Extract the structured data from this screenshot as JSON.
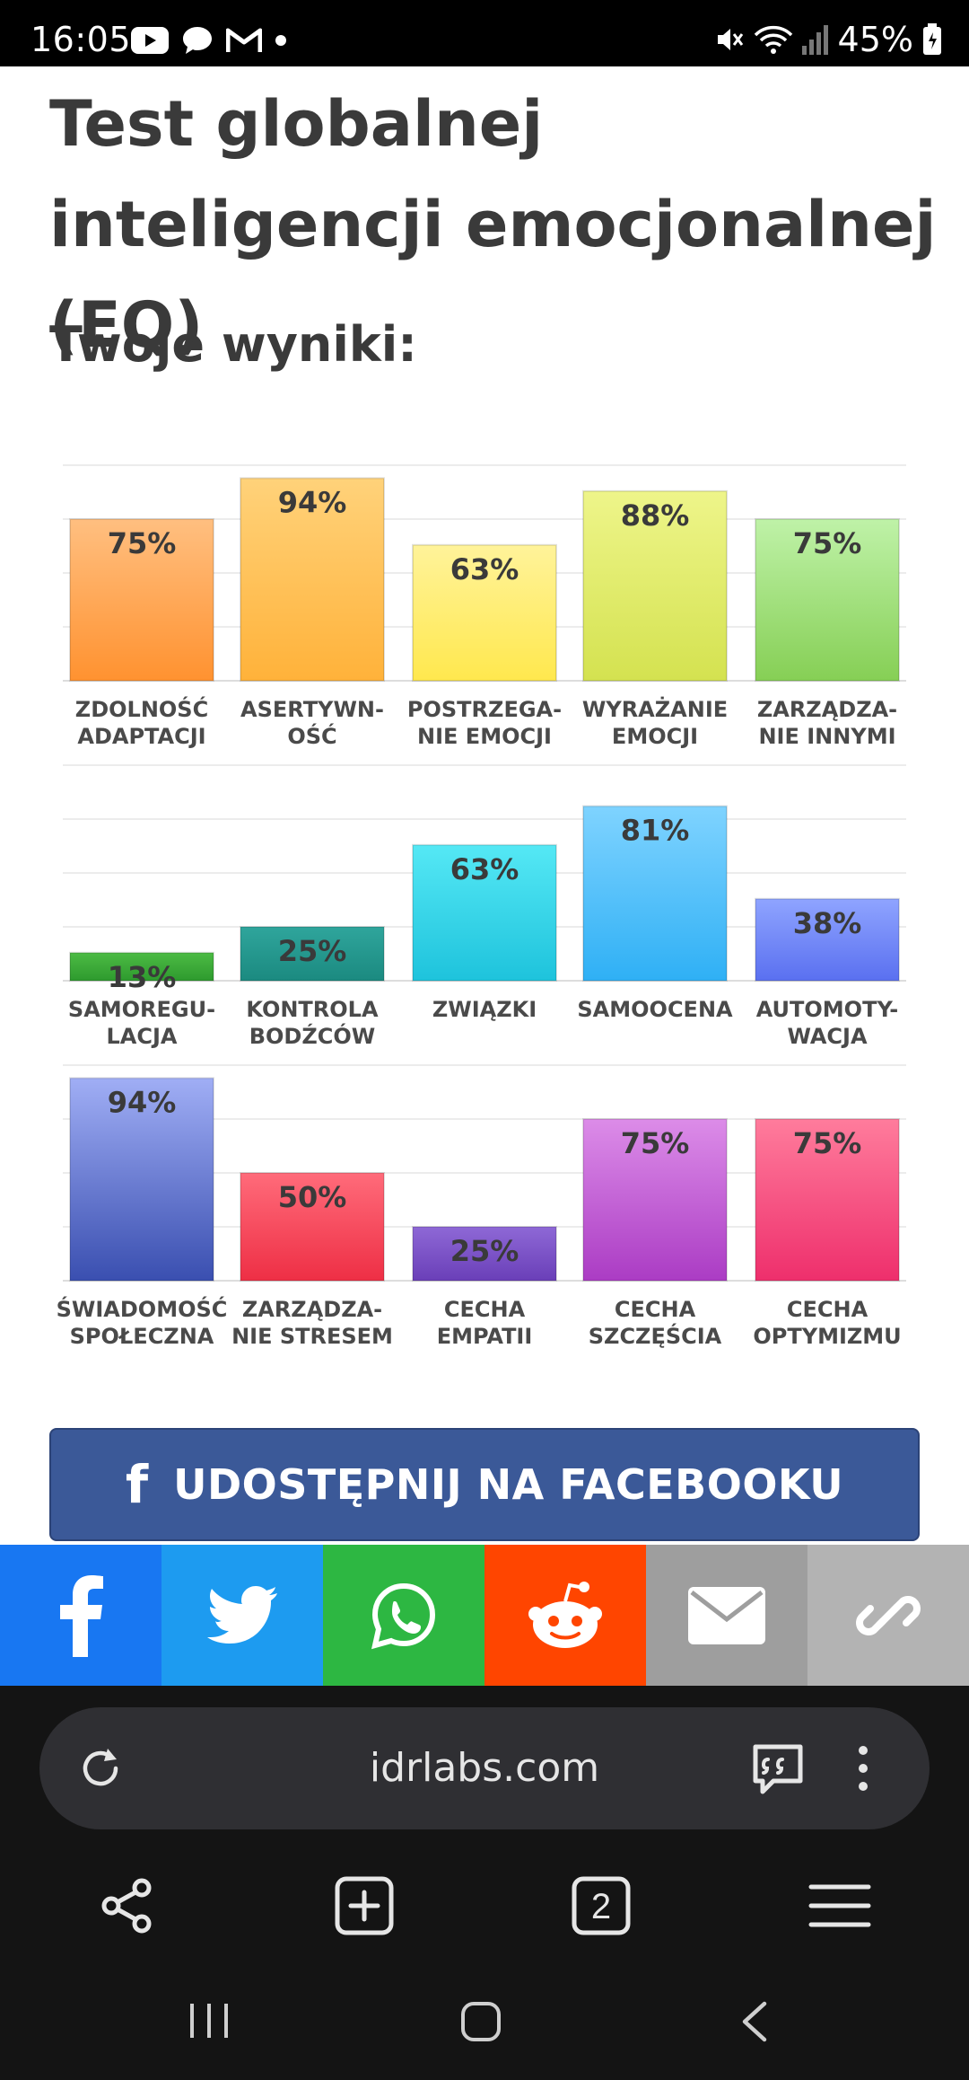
{
  "status_bar": {
    "time": "16:05",
    "battery": "45%",
    "left_icons": [
      "youtube-icon",
      "chat-icon",
      "gmail-icon",
      "notification-dot-icon"
    ],
    "right_icons": [
      "mute-icon",
      "wifi-icon",
      "signal-icon",
      "battery-icon"
    ]
  },
  "page": {
    "title": "Test globalnej inteligencji emocjonalnej (EQ)",
    "subtitle": "Twoje wyniki:"
  },
  "chart_data": {
    "type": "bar",
    "ylim": [
      0,
      100
    ],
    "grid": true,
    "rows": [
      {
        "categories": [
          [
            "ZDOLNOŚĆ",
            "ADAPTACJI"
          ],
          [
            "ASERTYWN-",
            "OŚĆ"
          ],
          [
            "POSTRZEGA-",
            "NIE EMOCJI"
          ],
          [
            "WYRAŻANIE",
            "EMOCJI"
          ],
          [
            "ZARZĄDZA-",
            "NIE INNYMI"
          ]
        ],
        "values": [
          75,
          94,
          63,
          88,
          75
        ],
        "labels": [
          "75%",
          "94%",
          "63%",
          "88%",
          "75%"
        ],
        "colors": [
          [
            "#ffbf80",
            "#ff9230"
          ],
          [
            "#ffd27a",
            "#ffb23a"
          ],
          [
            "#fff39a",
            "#ffe84e"
          ],
          [
            "#eef58a",
            "#d4e250"
          ],
          [
            "#bff2a8",
            "#86cf55"
          ]
        ]
      },
      {
        "categories": [
          [
            "SAMOREGU-",
            "LACJA"
          ],
          [
            "KONTROLA",
            "BODŹCÓW"
          ],
          [
            "ZWIĄZKI"
          ],
          [
            "SAMOOCENA"
          ],
          [
            "AUTOMOTY-",
            "WACJA"
          ]
        ],
        "values": [
          13,
          25,
          63,
          81,
          38
        ],
        "labels": [
          "13%",
          "25%",
          "63%",
          "81%",
          "38%"
        ],
        "colors": [
          [
            "#4cbb44",
            "#2e9a2e"
          ],
          [
            "#2fa59c",
            "#1b8a80"
          ],
          [
            "#55e8f5",
            "#1ec3dc"
          ],
          [
            "#7fd3ff",
            "#2fb0f5"
          ],
          [
            "#8fa4ff",
            "#5a70f0"
          ]
        ]
      },
      {
        "categories": [
          [
            "ŚWIADOMOŚĆ",
            "SPOŁECZNA"
          ],
          [
            "ZARZĄDZA-",
            "NIE STRESEM"
          ],
          [
            "CECHA",
            "EMPATII"
          ],
          [
            "CECHA",
            "SZCZĘŚCIA"
          ],
          [
            "CECHA",
            "OPTYMIZMU"
          ]
        ],
        "values": [
          94,
          50,
          25,
          75,
          75
        ],
        "labels": [
          "94%",
          "50%",
          "25%",
          "75%",
          "75%"
        ],
        "colors": [
          [
            "#a0aef5",
            "#3a4fb0"
          ],
          [
            "#ff6b7a",
            "#ee2f45"
          ],
          [
            "#8e68d6",
            "#6a3fb8"
          ],
          [
            "#dc8ce8",
            "#ab3cc4"
          ],
          [
            "#ff7c9c",
            "#ee2f6c"
          ]
        ]
      }
    ]
  },
  "share": {
    "facebook_button": "UDOSTĘPNIJ NA FACEBOOKU",
    "bar": [
      {
        "icon": "facebook-icon",
        "color": "#1877f2"
      },
      {
        "icon": "twitter-icon",
        "color": "#1d9bf0"
      },
      {
        "icon": "whatsapp-icon",
        "color": "#2db742"
      },
      {
        "icon": "reddit-icon",
        "color": "#ff4500"
      },
      {
        "icon": "email-icon",
        "color": "#9e9e9e"
      },
      {
        "icon": "link-icon",
        "color": "#b3b3b3"
      }
    ]
  },
  "browser": {
    "url": "idrlabs.com",
    "tab_count": "2",
    "toolbar_icons": [
      "share-icon",
      "new-tab-icon",
      "tabs-icon",
      "menu-icon"
    ]
  }
}
